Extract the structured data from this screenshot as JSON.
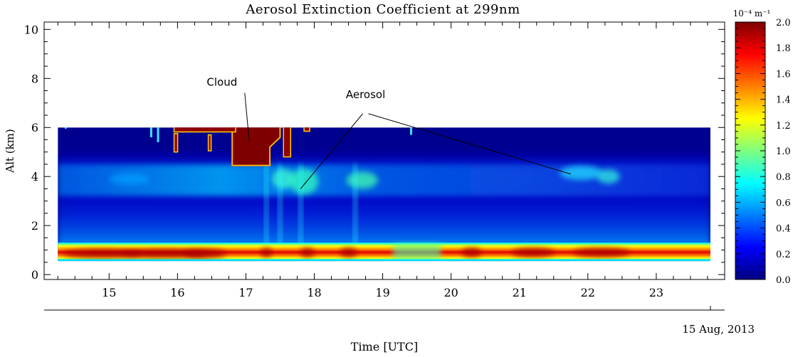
{
  "chart_data": {
    "type": "heatmap",
    "title": "Aerosol Extinction Coefficient at 299nm",
    "ylabel": "Alt (km)",
    "xlabel": "Time [UTC]",
    "date_label": "15 Aug, 2013",
    "xlim": [
      14.05,
      24.0
    ],
    "ylim": [
      -0.2,
      10.3
    ],
    "x_ticks": [
      15,
      16,
      17,
      18,
      19,
      20,
      21,
      22,
      23
    ],
    "y_ticks": [
      0,
      2,
      4,
      6,
      8,
      10
    ],
    "data_extent": {
      "x": [
        14.25,
        24.0
      ],
      "y": [
        0.55,
        6.0
      ]
    },
    "colorbar": {
      "unit": "10⁻⁴ m⁻¹",
      "range": [
        0.0,
        2.0
      ],
      "ticks": [
        "0.0",
        "0.2",
        "0.4",
        "0.6",
        "0.8",
        "1.0",
        "1.2",
        "1.4",
        "1.6",
        "1.8",
        "2.0"
      ],
      "colors": [
        "#00007f",
        "#0000ff",
        "#007fff",
        "#00ffff",
        "#7fff7f",
        "#ffff00",
        "#ff7f00",
        "#ff0000",
        "#7f0000"
      ]
    },
    "annotations": [
      {
        "text": "Cloud",
        "at": [
          16.65,
          7.7
        ],
        "targets": [
          [
            17.05,
            5.4
          ]
        ]
      },
      {
        "text": "Aerosol",
        "at": [
          18.75,
          7.2
        ],
        "targets": [
          [
            17.8,
            3.5
          ],
          [
            21.75,
            4.1
          ]
        ]
      }
    ]
  }
}
